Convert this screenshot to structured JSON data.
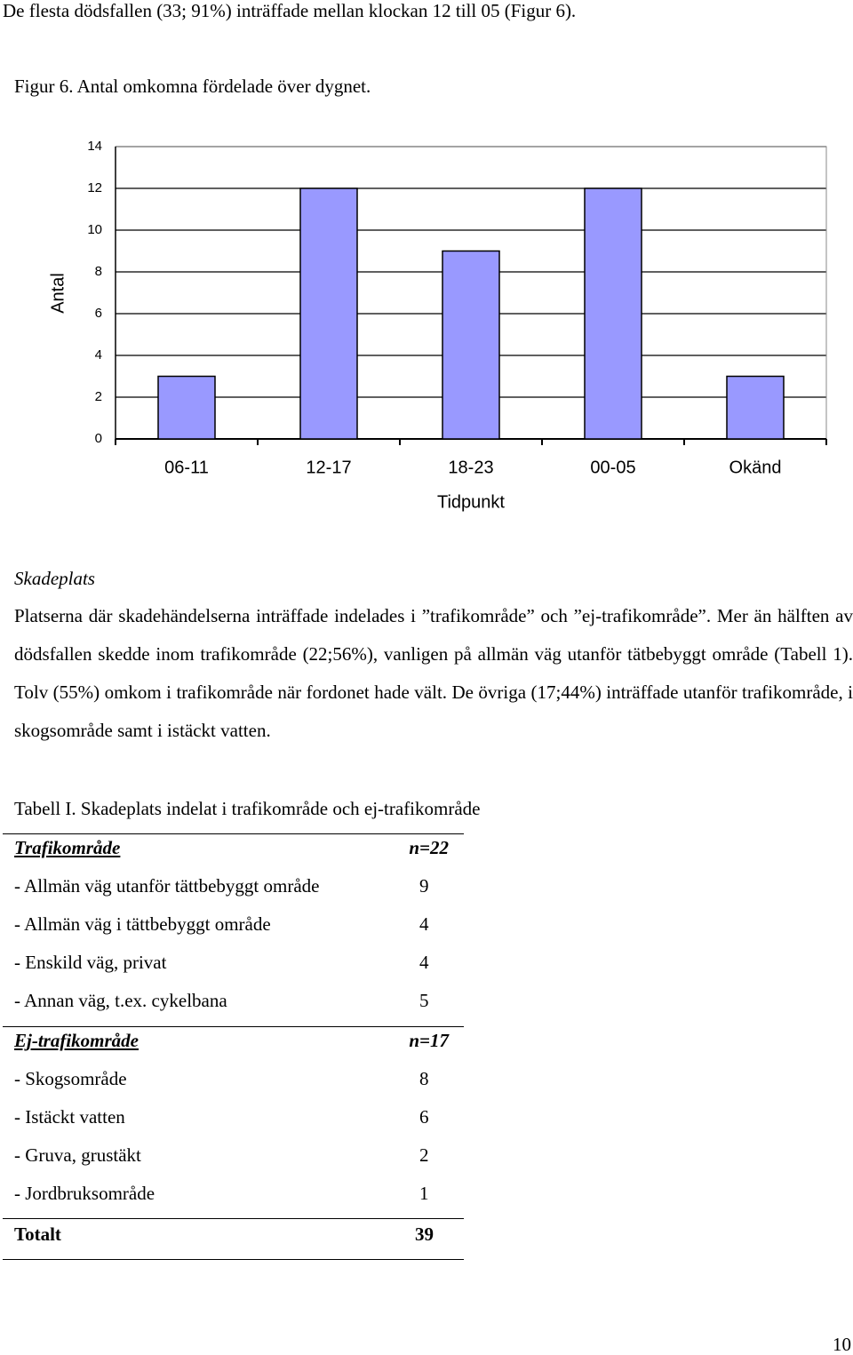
{
  "intro": "De flesta dödsfallen (33; 91%) inträffade mellan klockan 12 till 05 (Figur 6).",
  "figure_caption": "Figur 6. Antal omkomna fördelade över dygnet.",
  "chart_data": {
    "type": "bar",
    "categories": [
      "06-11",
      "12-17",
      "18-23",
      "00-05",
      "Okänd"
    ],
    "values": [
      3,
      12,
      9,
      12,
      3
    ],
    "color": "#9999ff",
    "ylim": [
      0,
      14
    ],
    "yticks": [
      0,
      2,
      4,
      6,
      8,
      10,
      12,
      14
    ],
    "grid": true,
    "y_label": "Antal",
    "x_label": "Tidpunkt"
  },
  "section_heading": "Skadeplats",
  "paragraph": "Platserna där skadehändelserna inträffade indelades i ”trafikområde” och ”ej-trafikområde”. Mer än hälften av dödsfallen skedde inom trafikområde (22;56%), vanligen på allmän väg utanför tätbebyggt område (Tabell 1). Tolv (55%) omkom i trafikområde när fordonet hade vält. De övriga (17;44%) inträffade utanför trafikområde, i skogsområde samt i istäckt vatten.",
  "table": {
    "caption": "Tabell I. Skadeplats indelat i trafikområde och ej-trafikområde",
    "groups": [
      {
        "heading": "Trafikområde",
        "n": "n=22",
        "rows": [
          {
            "label": "- Allmän väg utanför tättbebyggt område",
            "count": 9
          },
          {
            "label": "- Allmän väg i tättbebyggt område",
            "count": 4
          },
          {
            "label": "- Enskild väg, privat",
            "count": 4
          },
          {
            "label": "- Annan väg, t.ex. cykelbana",
            "count": 5
          }
        ]
      },
      {
        "heading": "Ej-trafikområde",
        "n": "n=17",
        "rows": [
          {
            "label": "- Skogsområde",
            "count": 8
          },
          {
            "label": "- Istäckt vatten",
            "count": 6
          },
          {
            "label": "- Gruva, grustäkt",
            "count": 2
          },
          {
            "label": "- Jordbruksområde",
            "count": 1
          }
        ]
      }
    ],
    "total_label": "Totalt",
    "total": 39
  },
  "page_number": 10
}
